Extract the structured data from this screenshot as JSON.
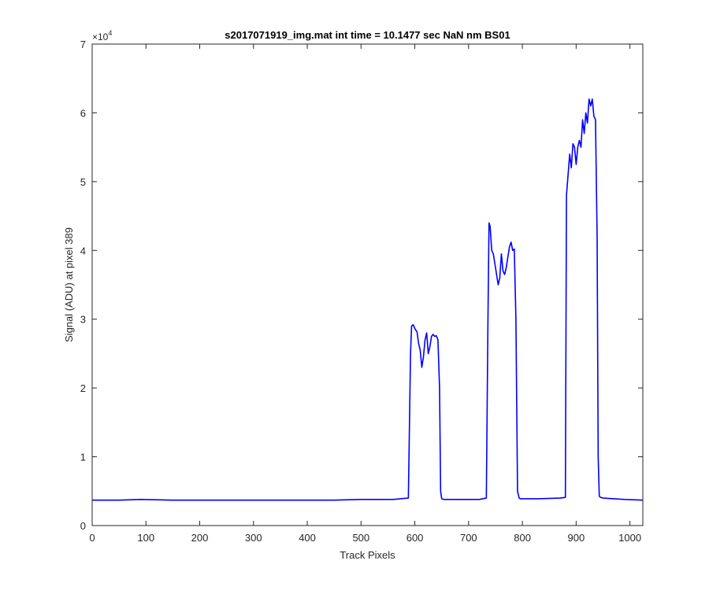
{
  "chart_data": {
    "type": "line",
    "title": "s2017071919_img.mat int time = 10.1477 sec  NaN nm BS01",
    "xlabel": "Track Pixels",
    "ylabel": "Signal (ADU) at pixel 389",
    "xlim": [
      0,
      1024
    ],
    "ylim": [
      0,
      70000
    ],
    "y_exponent_label": "×10",
    "y_exponent_power": "4",
    "x_ticks": [
      0,
      100,
      200,
      300,
      400,
      500,
      600,
      700,
      800,
      900,
      1000
    ],
    "x_tick_labels": [
      "0",
      "100",
      "200",
      "300",
      "400",
      "500",
      "600",
      "700",
      "800",
      "900",
      "1000"
    ],
    "y_ticks": [
      0,
      10000,
      20000,
      30000,
      40000,
      50000,
      60000,
      70000
    ],
    "y_tick_labels": [
      "0",
      "1",
      "2",
      "3",
      "4",
      "5",
      "6",
      "7"
    ],
    "grid": false,
    "series": [
      {
        "color": "#0000ff",
        "x": [
          0,
          50,
          90,
          150,
          250,
          350,
          450,
          500,
          560,
          588,
          592,
          594,
          597,
          601,
          604,
          607,
          610,
          613,
          616,
          619,
          622,
          625,
          628,
          631,
          634,
          637,
          640,
          643,
          646,
          648,
          650,
          654,
          680,
          720,
          733,
          736,
          738,
          740,
          743,
          746,
          749,
          752,
          755,
          758,
          761,
          764,
          767,
          770,
          773,
          776,
          779,
          782,
          785,
          788,
          791,
          794,
          796,
          798,
          802,
          830,
          870,
          880,
          882,
          885,
          888,
          891,
          894,
          897,
          900,
          903,
          906,
          909,
          912,
          915,
          918,
          921,
          924,
          927,
          930,
          933,
          936,
          939,
          941,
          943,
          945,
          950,
          990,
          1024
        ],
        "y": [
          3700,
          3700,
          3800,
          3700,
          3700,
          3700,
          3700,
          3800,
          3800,
          4000,
          25000,
          29000,
          29200,
          28500,
          28200,
          26500,
          25500,
          23000,
          24500,
          27000,
          28000,
          25000,
          26000,
          27500,
          27800,
          27500,
          27600,
          27000,
          20000,
          5000,
          3900,
          3800,
          3800,
          3800,
          4000,
          30000,
          44000,
          43500,
          40000,
          39500,
          38000,
          36500,
          35000,
          36000,
          39500,
          37000,
          36500,
          37500,
          39000,
          40500,
          41200,
          40000,
          40200,
          30000,
          5000,
          4000,
          3900,
          3900,
          3900,
          3900,
          4000,
          4100,
          48000,
          51000,
          54000,
          52000,
          55500,
          55000,
          52500,
          55000,
          56000,
          55000,
          59000,
          57000,
          60000,
          58500,
          62000,
          61000,
          62000,
          59500,
          59000,
          42000,
          10000,
          4300,
          4100,
          4000,
          3800,
          3700
        ]
      }
    ]
  }
}
